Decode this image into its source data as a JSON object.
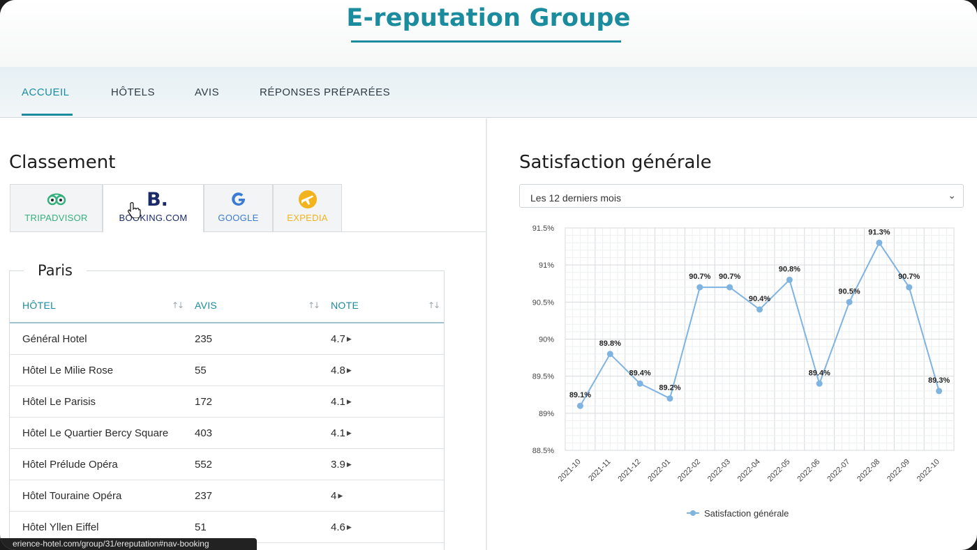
{
  "header": {
    "title": "E-reputation Groupe"
  },
  "nav": {
    "items": [
      "ACCUEIL",
      "HÔTELS",
      "AVIS",
      "RÉPONSES PRÉPARÉES"
    ]
  },
  "ranking": {
    "title": "Classement",
    "tabs": [
      {
        "label": "TRIPADVISOR",
        "icon": "tripadvisor-owl-icon",
        "color": "#34b07d"
      },
      {
        "label": "BOOKING.COM",
        "icon": "booking-b-icon",
        "color": "#1b2a6b"
      },
      {
        "label": "GOOGLE",
        "icon": "google-g-icon",
        "color": "#3a7bd5"
      },
      {
        "label": "EXPEDIA",
        "icon": "expedia-plane-icon",
        "color": "#f2b31d"
      }
    ],
    "booking_logo_text": "B.",
    "city": "Paris",
    "columns": [
      "HÔTEL",
      "AVIS",
      "NOTE"
    ],
    "rows": [
      {
        "hotel": "Général Hotel",
        "reviews": "235",
        "score": "4.7"
      },
      {
        "hotel": "Hôtel Le Milie Rose",
        "reviews": "55",
        "score": "4.8"
      },
      {
        "hotel": "Hôtel Le Parisis",
        "reviews": "172",
        "score": "4.1"
      },
      {
        "hotel": "Hôtel Le Quartier Bercy Square",
        "reviews": "403",
        "score": "4.1"
      },
      {
        "hotel": "Hôtel Prélude Opéra",
        "reviews": "552",
        "score": "3.9"
      },
      {
        "hotel": "Hôtel Touraine Opéra",
        "reviews": "237",
        "score": "4"
      },
      {
        "hotel": "Hôtel Yllen Eiffel",
        "reviews": "51",
        "score": "4.6"
      }
    ]
  },
  "status_url": "erience-hotel.com/group/31/ereputation#nav-booking",
  "satisfaction": {
    "title": "Satisfaction générale",
    "period_selected": "Les 12 derniers mois"
  },
  "chart_data": {
    "type": "line",
    "x": [
      "2021-10",
      "2021-11",
      "2021-12",
      "2022-01",
      "2022-02",
      "2022-03",
      "2022-04",
      "2022-05",
      "2022-06",
      "2022-07",
      "2022-08",
      "2022-09",
      "2022-10"
    ],
    "series": [
      {
        "name": "Satisfaction générale",
        "values": [
          89.1,
          89.8,
          89.4,
          89.2,
          90.7,
          90.7,
          90.4,
          90.8,
          89.4,
          90.5,
          91.3,
          90.7,
          89.3
        ],
        "color": "#7fb3e0"
      }
    ],
    "point_labels": [
      "89.1%",
      "89.8%",
      "89.4%",
      "89.2%",
      "90.7%",
      "90.7%",
      "90.4%",
      "90.8%",
      "89.4%",
      "90.5%",
      "91.3%",
      "90.7%",
      "89.3%"
    ],
    "ylim": [
      88.5,
      91.5
    ],
    "yticks": [
      91.5,
      91,
      90.5,
      90,
      89.5,
      89,
      88.5
    ],
    "ytick_labels": [
      "91.5%",
      "91%",
      "90.5%",
      "90%",
      "89.5%",
      "89%",
      "88.5%"
    ],
    "grid": true,
    "legend": "bottom"
  }
}
